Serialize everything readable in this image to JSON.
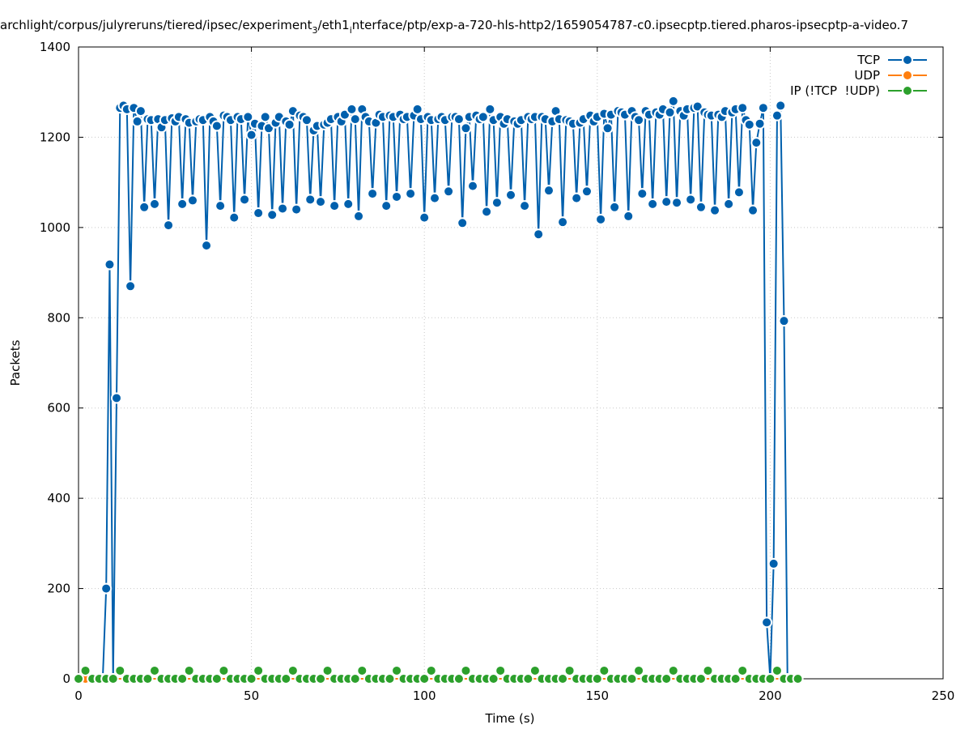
{
  "chart_data": {
    "type": "line",
    "title": [
      "archlight/corpus/julyreruns/tiered/ipsec/experiment",
      "3",
      "/eth1",
      "i",
      "nterface/ptp/exp-a-720-hls-http2/1659054787-c0.ipsecptp.tiered.pharos-ipsecptp-a-video.7"
    ],
    "x_label": "Time (s)",
    "y_label": "Packets",
    "xlim": [
      0,
      250
    ],
    "ylim": [
      0,
      1400
    ],
    "xticks": [
      0,
      50,
      100,
      150,
      200,
      250
    ],
    "yticks": [
      0,
      200,
      400,
      600,
      800,
      1000,
      1200,
      1400
    ],
    "grid": true,
    "legend": "top-right",
    "series": [
      {
        "name": "TCP",
        "color": "#0060ad",
        "x": [
          7,
          8,
          9,
          10,
          11,
          12,
          13,
          14,
          15,
          16,
          17,
          18,
          19,
          20,
          21,
          22,
          23,
          24,
          25,
          26,
          27,
          28,
          29,
          30,
          31,
          32,
          33,
          34,
          35,
          36,
          37,
          38,
          39,
          40,
          41,
          42,
          43,
          44,
          45,
          46,
          47,
          48,
          49,
          50,
          51,
          52,
          53,
          54,
          55,
          56,
          57,
          58,
          59,
          60,
          61,
          62,
          63,
          64,
          65,
          66,
          67,
          68,
          69,
          70,
          71,
          72,
          73,
          74,
          75,
          76,
          77,
          78,
          79,
          80,
          81,
          82,
          83,
          84,
          85,
          86,
          87,
          88,
          89,
          90,
          91,
          92,
          93,
          94,
          95,
          96,
          97,
          98,
          99,
          100,
          101,
          102,
          103,
          104,
          105,
          106,
          107,
          108,
          109,
          110,
          111,
          112,
          113,
          114,
          115,
          116,
          117,
          118,
          119,
          120,
          121,
          122,
          123,
          124,
          125,
          126,
          127,
          128,
          129,
          130,
          131,
          132,
          133,
          134,
          135,
          136,
          137,
          138,
          139,
          140,
          141,
          142,
          143,
          144,
          145,
          146,
          147,
          148,
          149,
          150,
          151,
          152,
          153,
          154,
          155,
          156,
          157,
          158,
          159,
          160,
          161,
          162,
          163,
          164,
          165,
          166,
          167,
          168,
          169,
          170,
          171,
          172,
          173,
          174,
          175,
          176,
          177,
          178,
          179,
          180,
          181,
          182,
          183,
          184,
          185,
          186,
          187,
          188,
          189,
          190,
          191,
          192,
          193,
          194,
          195,
          196,
          197,
          198,
          199,
          200,
          201,
          202,
          203,
          204,
          205
        ],
        "values": [
          0,
          200,
          918,
          0,
          622,
          1265,
          1270,
          1262,
          870,
          1265,
          1235,
          1258,
          1045,
          1240,
          1238,
          1052,
          1240,
          1222,
          1238,
          1005,
          1242,
          1235,
          1245,
          1052,
          1240,
          1232,
          1060,
          1235,
          1240,
          1238,
          960,
          1245,
          1235,
          1225,
          1048,
          1248,
          1245,
          1238,
          1022,
          1245,
          1240,
          1062,
          1245,
          1205,
          1230,
          1032,
          1225,
          1245,
          1220,
          1028,
          1232,
          1245,
          1042,
          1235,
          1228,
          1258,
          1040,
          1248,
          1245,
          1238,
          1062,
          1215,
          1225,
          1057,
          1228,
          1232,
          1240,
          1048,
          1245,
          1235,
          1250,
          1052,
          1262,
          1240,
          1025,
          1262,
          1245,
          1235,
          1075,
          1232,
          1250,
          1245,
          1048,
          1248,
          1245,
          1068,
          1250,
          1240,
          1245,
          1075,
          1248,
          1262,
          1240,
          1022,
          1245,
          1238,
          1065,
          1240,
          1245,
          1238,
          1080,
          1245,
          1245,
          1240,
          1010,
          1220,
          1245,
          1092,
          1248,
          1240,
          1245,
          1035,
          1262,
          1238,
          1055,
          1245,
          1230,
          1240,
          1072,
          1235,
          1230,
          1238,
          1048,
          1245,
          1240,
          1245,
          985,
          1245,
          1240,
          1082,
          1235,
          1258,
          1240,
          1012,
          1238,
          1235,
          1230,
          1065,
          1232,
          1240,
          1080,
          1248,
          1235,
          1245,
          1018,
          1252,
          1220,
          1250,
          1045,
          1258,
          1255,
          1250,
          1025,
          1258,
          1245,
          1238,
          1075,
          1258,
          1250,
          1052,
          1255,
          1250,
          1262,
          1057,
          1255,
          1280,
          1055,
          1258,
          1248,
          1262,
          1062,
          1265,
          1268,
          1045,
          1255,
          1250,
          1248,
          1038,
          1250,
          1245,
          1258,
          1052,
          1255,
          1262,
          1078,
          1265,
          1238,
          1228,
          1038,
          1188,
          1230,
          1265,
          125,
          0,
          255,
          1248,
          1270,
          793,
          0
        ]
      },
      {
        "name": "UDP",
        "color": "#ff7f0e",
        "x": [
          2,
          208
        ],
        "values": [
          0,
          0
        ]
      },
      {
        "name": "IP (!TCP  !UDP)",
        "color": "#2ca02c",
        "x": [
          0,
          2,
          4,
          6,
          8,
          10,
          12,
          14,
          16,
          18,
          20,
          22,
          24,
          26,
          28,
          30,
          32,
          34,
          36,
          38,
          40,
          42,
          44,
          46,
          48,
          50,
          52,
          54,
          56,
          58,
          60,
          62,
          64,
          66,
          68,
          70,
          72,
          74,
          76,
          78,
          80,
          82,
          84,
          86,
          88,
          90,
          92,
          94,
          96,
          98,
          100,
          102,
          104,
          106,
          108,
          110,
          112,
          114,
          116,
          118,
          120,
          122,
          124,
          126,
          128,
          130,
          132,
          134,
          136,
          138,
          140,
          142,
          144,
          146,
          148,
          150,
          152,
          154,
          156,
          158,
          160,
          162,
          164,
          166,
          168,
          170,
          172,
          174,
          176,
          178,
          180,
          182,
          184,
          186,
          188,
          190,
          192,
          194,
          196,
          198,
          200,
          202,
          204,
          206,
          208
        ],
        "values": [
          0,
          18,
          0,
          0,
          0,
          0,
          18,
          0,
          0,
          0,
          0,
          18,
          0,
          0,
          0,
          0,
          18,
          0,
          0,
          0,
          0,
          18,
          0,
          0,
          0,
          0,
          18,
          0,
          0,
          0,
          0,
          18,
          0,
          0,
          0,
          0,
          18,
          0,
          0,
          0,
          0,
          18,
          0,
          0,
          0,
          0,
          18,
          0,
          0,
          0,
          0,
          18,
          0,
          0,
          0,
          0,
          18,
          0,
          0,
          0,
          0,
          18,
          0,
          0,
          0,
          0,
          18,
          0,
          0,
          0,
          0,
          18,
          0,
          0,
          0,
          0,
          18,
          0,
          0,
          0,
          0,
          18,
          0,
          0,
          0,
          0,
          18,
          0,
          0,
          0,
          0,
          18,
          0,
          0,
          0,
          0,
          18,
          0,
          0,
          0,
          0,
          18,
          0,
          0,
          0
        ]
      }
    ]
  }
}
